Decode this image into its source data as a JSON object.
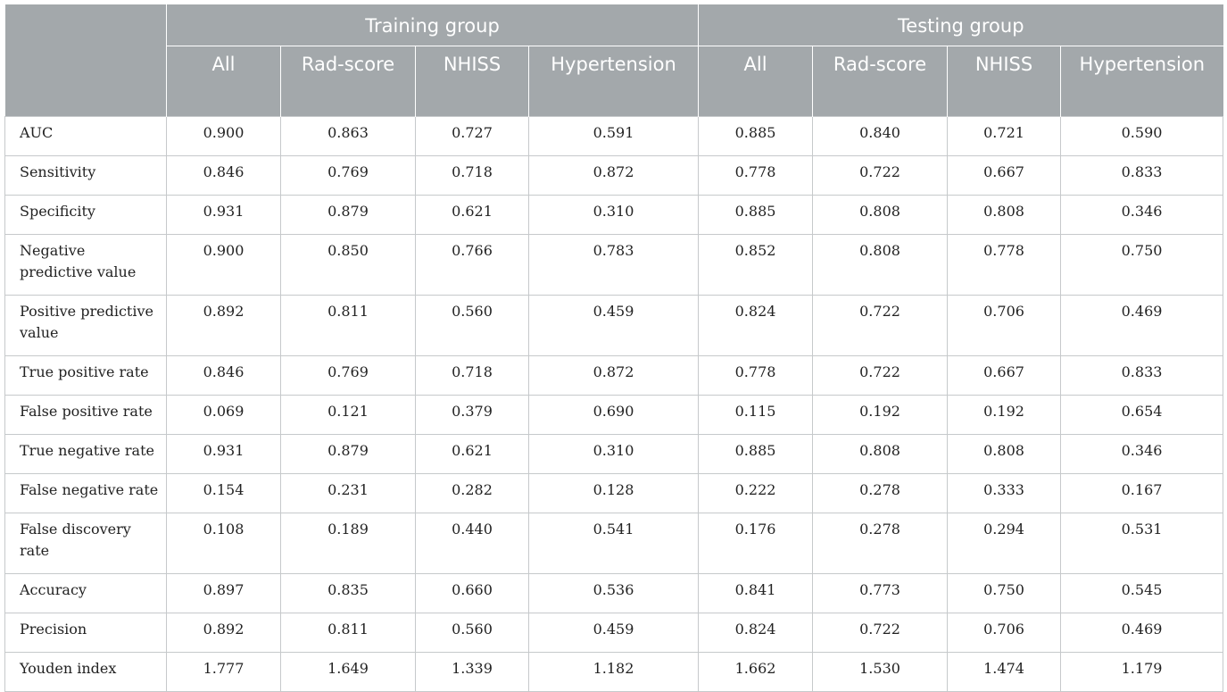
{
  "header": {
    "groups": [
      "Training group",
      "Testing group"
    ],
    "columns": [
      "All",
      "Rad-score",
      "NHISS",
      "Hypertension",
      "All",
      "Rad-score",
      "NHISS",
      "Hypertension"
    ]
  },
  "rows": [
    {
      "label": "AUC",
      "values": [
        "0.900",
        "0.863",
        "0.727",
        "0.591",
        "0.885",
        "0.840",
        "0.721",
        "0.590"
      ]
    },
    {
      "label": "Sensitivity",
      "values": [
        "0.846",
        "0.769",
        "0.718",
        "0.872",
        "0.778",
        "0.722",
        "0.667",
        "0.833"
      ]
    },
    {
      "label": "Specificity",
      "values": [
        "0.931",
        "0.879",
        "0.621",
        "0.310",
        "0.885",
        "0.808",
        "0.808",
        "0.346"
      ]
    },
    {
      "label": "Negative predictive value",
      "values": [
        "0.900",
        "0.850",
        "0.766",
        "0.783",
        "0.852",
        "0.808",
        "0.778",
        "0.750"
      ]
    },
    {
      "label": "Positive predictive value",
      "values": [
        "0.892",
        "0.811",
        "0.560",
        "0.459",
        "0.824",
        "0.722",
        "0.706",
        "0.469"
      ]
    },
    {
      "label": "True positive rate",
      "values": [
        "0.846",
        "0.769",
        "0.718",
        "0.872",
        "0.778",
        "0.722",
        "0.667",
        "0.833"
      ]
    },
    {
      "label": "False positive rate",
      "values": [
        "0.069",
        "0.121",
        "0.379",
        "0.690",
        "0.115",
        "0.192",
        "0.192",
        "0.654"
      ]
    },
    {
      "label": "True negative rate",
      "values": [
        "0.931",
        "0.879",
        "0.621",
        "0.310",
        "0.885",
        "0.808",
        "0.808",
        "0.346"
      ]
    },
    {
      "label": "False negative rate",
      "values": [
        "0.154",
        "0.231",
        "0.282",
        "0.128",
        "0.222",
        "0.278",
        "0.333",
        "0.167"
      ]
    },
    {
      "label": "False discovery rate",
      "values": [
        "0.108",
        "0.189",
        "0.440",
        "0.541",
        "0.176",
        "0.278",
        "0.294",
        "0.531"
      ]
    },
    {
      "label": "Accuracy",
      "values": [
        "0.897",
        "0.835",
        "0.660",
        "0.536",
        "0.841",
        "0.773",
        "0.750",
        "0.545"
      ]
    },
    {
      "label": "Precision",
      "values": [
        "0.892",
        "0.811",
        "0.560",
        "0.459",
        "0.824",
        "0.722",
        "0.706",
        "0.469"
      ]
    },
    {
      "label": "Youden index",
      "values": [
        "1.777",
        "1.649",
        "1.339",
        "1.182",
        "1.662",
        "1.530",
        "1.474",
        "1.179"
      ]
    }
  ],
  "colors": {
    "header_bg": "#a3a8ab",
    "header_text": "#ffffff",
    "border": "#c6c9cb"
  }
}
